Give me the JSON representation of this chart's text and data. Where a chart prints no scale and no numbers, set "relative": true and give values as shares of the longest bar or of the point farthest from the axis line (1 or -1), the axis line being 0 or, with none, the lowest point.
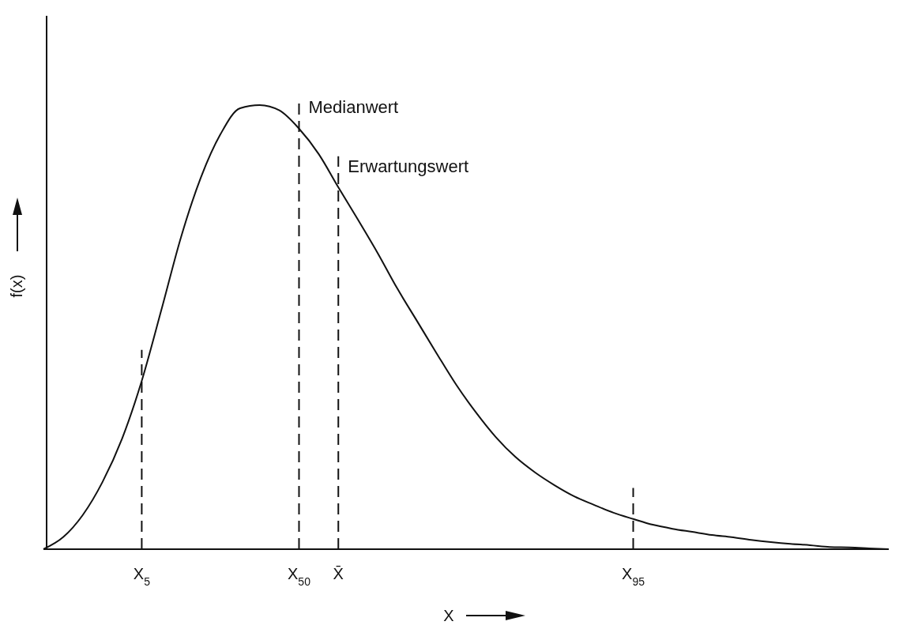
{
  "chart_data": {
    "type": "line",
    "relative": true,
    "xlabel": "X",
    "ylabel": "f(x)",
    "categories": [
      null,
      null,
      null,
      null,
      null,
      "X$_{5}$",
      null,
      null,
      null,
      null,
      null,
      null,
      null,
      "X$_{50}$",
      null,
      "X̄",
      null,
      null,
      null,
      null,
      null,
      null,
      null,
      null,
      null,
      null,
      null,
      null,
      null,
      null,
      "X$_{95}$",
      null,
      null,
      null,
      null,
      null,
      null,
      null,
      null,
      null,
      null,
      null,
      null,
      null
    ],
    "series": [
      {
        "color": "#111111",
        "values": [
          0,
          0.027,
          0.077,
          0.151,
          0.249,
          0.379,
          0.539,
          0.703,
          0.836,
          0.934,
          0.993,
          1.0,
          0.988,
          0.947,
          0.89,
          0.815,
          0.742,
          0.667,
          0.587,
          0.514,
          0.441,
          0.37,
          0.308,
          0.253,
          0.208,
          0.173,
          0.144,
          0.119,
          0.1,
          0.082,
          0.068,
          0.055,
          0.046,
          0.039,
          0.032,
          0.027,
          0.021,
          0.016,
          0.012,
          0.009,
          0.005,
          0.004,
          0.002,
          0
        ]
      }
    ],
    "ref_lines": [
      {
        "axis": "x",
        "value": "X$_{5}$",
        "line_style": "dashed"
      },
      {
        "axis": "x",
        "value": "X$_{50}$",
        "label": "Medianwert",
        "line_style": "dashed"
      },
      {
        "axis": "x",
        "value": "X̄",
        "label": "Erwartungswert",
        "line_style": "dashed"
      },
      {
        "axis": "x",
        "value": "X$_{95}$",
        "line_style": "dashed"
      }
    ]
  }
}
